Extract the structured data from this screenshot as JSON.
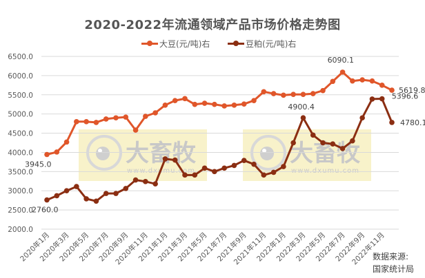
{
  "chart_data": {
    "type": "line",
    "title": "2020-2022年流通领域产品市场价格走势图",
    "xlabel": "",
    "ylabel": "",
    "ylim": [
      2000,
      6500
    ],
    "yticks": [
      "6500.0",
      "6000.0",
      "5500.0",
      "5000.0",
      "4500.0",
      "4000.0",
      "3500.0",
      "3000.0",
      "2500.0",
      "2000.0"
    ],
    "grid": true,
    "legend_position": "top",
    "categories": [
      "2020年1月",
      "2020年2月",
      "2020年3月",
      "2020年4月",
      "2020年5月",
      "2020年6月",
      "2020年7月",
      "2020年8月",
      "2020年9月",
      "2020年10月",
      "2020年11月",
      "2020年12月",
      "2021年1月",
      "2021年2月",
      "2021年3月",
      "2021年4月",
      "2021年5月",
      "2021年6月",
      "2021年7月",
      "2021年8月",
      "2021年9月",
      "2021年10月",
      "2021年11月",
      "2021年12月",
      "2022年1月",
      "2022年2月",
      "2022年3月",
      "2022年4月",
      "2022年5月",
      "2022年6月",
      "2022年7月",
      "2022年8月",
      "2022年9月",
      "2022年10月",
      "2022年11月",
      "2022年12月"
    ],
    "xtick_labels": [
      "2020年1月",
      "2020年3月",
      "2020年5月",
      "2020年7月",
      "2020年9月",
      "2020年11月",
      "2021年1月",
      "2021年3月",
      "2021年5月",
      "2021年7月",
      "2021年9月",
      "2021年11月",
      "2022年1月",
      "2022年3月",
      "2022年5月",
      "2022年7月",
      "2022年9月",
      "2022年11月"
    ],
    "series": [
      {
        "name": "大豆(元/吨)右",
        "color": "#E0562A",
        "values": [
          3945.0,
          4010,
          4270,
          4800,
          4800,
          4780,
          4870,
          4900,
          4920,
          4580,
          4940,
          5030,
          5230,
          5350,
          5400,
          5250,
          5280,
          5250,
          5210,
          5230,
          5260,
          5350,
          5580,
          5530,
          5490,
          5510,
          5510,
          5530,
          5610,
          5850,
          6090.1,
          5860,
          5890,
          5860,
          5750,
          5619.8
        ]
      },
      {
        "name": "豆粕(元/吨)右",
        "color": "#8B2E12",
        "values": [
          2760.0,
          2870,
          3000,
          3110,
          2790,
          2730,
          2930,
          2930,
          3060,
          3280,
          3240,
          3180,
          3830,
          3800,
          3410,
          3410,
          3590,
          3500,
          3590,
          3660,
          3790,
          3690,
          3410,
          3480,
          3630,
          4250,
          4900.4,
          4450,
          4250,
          4220,
          4100,
          4300,
          4900,
          5390,
          5396.6,
          4780.1
        ]
      }
    ],
    "annotations": [
      {
        "series": 0,
        "index": 0,
        "text": "3945.0"
      },
      {
        "series": 0,
        "index": 30,
        "text": "6090.1"
      },
      {
        "series": 0,
        "index": 35,
        "text": "5619.8"
      },
      {
        "series": 1,
        "index": 0,
        "text": "2760.0"
      },
      {
        "series": 1,
        "index": 26,
        "text": "4900.4"
      },
      {
        "series": 1,
        "index": 34,
        "text": "5396.6"
      },
      {
        "series": 1,
        "index": 35,
        "text": "4780.1"
      }
    ]
  },
  "title": "2020-2022年流通领域产品市场价格走势图",
  "legend": [
    {
      "label": "大豆(元/吨)右",
      "color": "#E0562A"
    },
    {
      "label": "豆粕(元/吨)右",
      "color": "#8B2E12"
    }
  ],
  "source": {
    "line1": "数据来源:",
    "line2": "国家统计局"
  },
  "watermark": {
    "text": "大畜牧",
    "url_text": "www.dxumu.com"
  }
}
